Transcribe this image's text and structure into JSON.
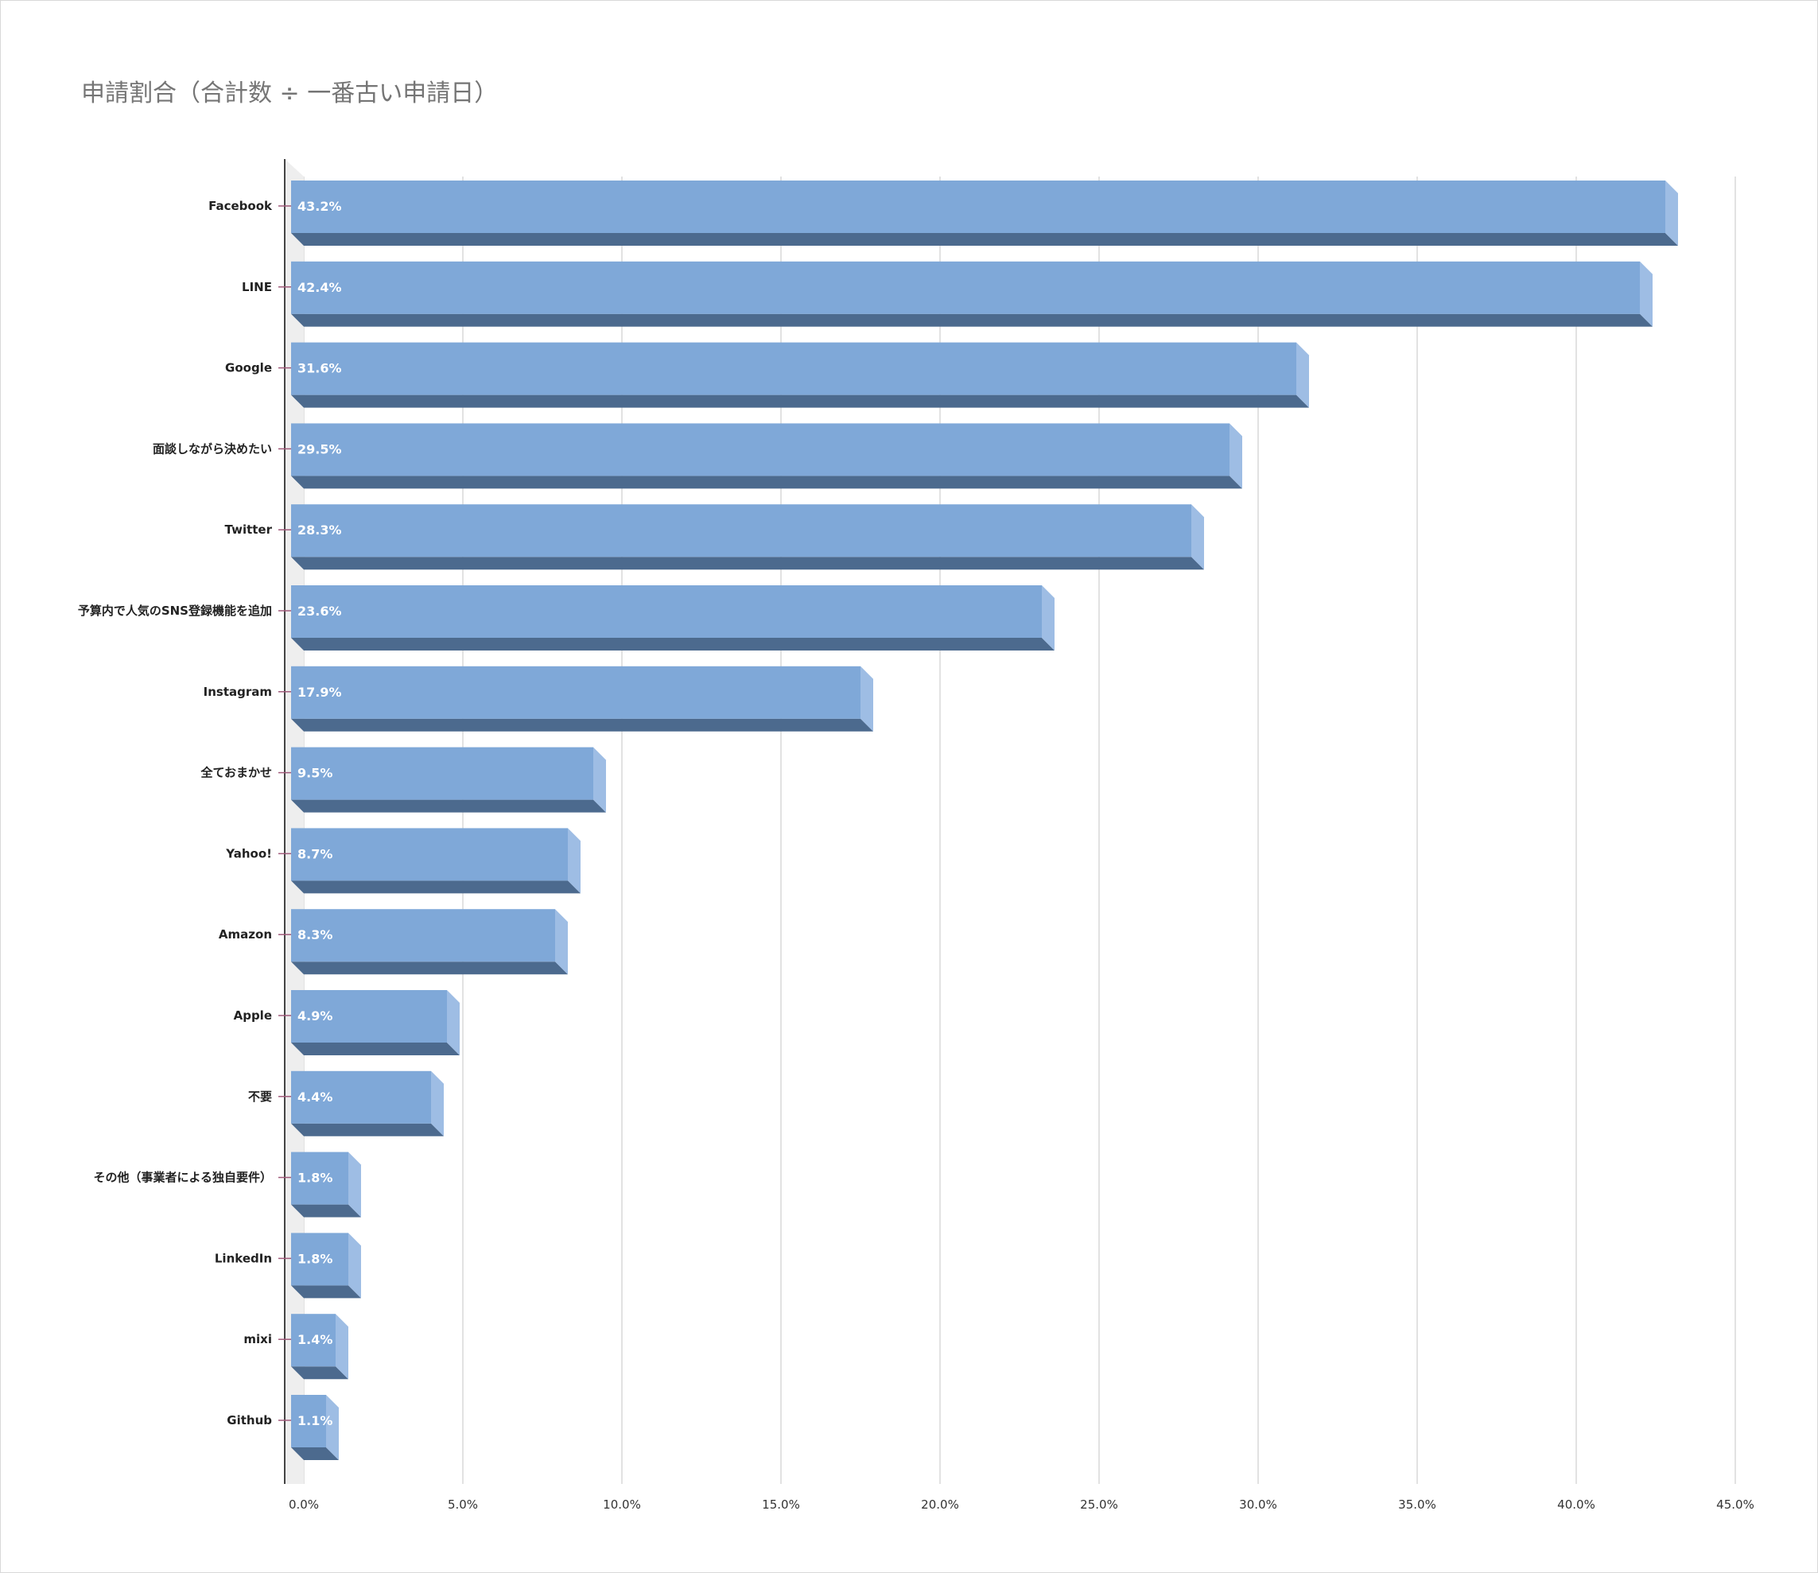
{
  "chart_data": {
    "type": "bar",
    "orientation": "horizontal",
    "title": "申請割合（合計数 ÷ 一番古い申請日）",
    "categories": [
      "Facebook",
      "LINE",
      "Google",
      "面談しながら決めたい",
      "Twitter",
      "予算内で人気のSNS登録機能を追加",
      "Instagram",
      "全ておまかせ",
      "Yahoo!",
      "Amazon",
      "Apple",
      "不要",
      "その他（事業者による独自要件）",
      "LinkedIn",
      "mixi",
      "Github"
    ],
    "values": [
      43.2,
      42.4,
      31.6,
      29.5,
      28.3,
      23.6,
      17.9,
      9.5,
      8.7,
      8.3,
      4.9,
      4.4,
      1.8,
      1.8,
      1.4,
      1.1
    ],
    "data_labels": [
      "43.2%",
      "42.4%",
      "31.6%",
      "29.5%",
      "28.3%",
      "23.6%",
      "17.9%",
      "9.5%",
      "8.7%",
      "8.3%",
      "4.9%",
      "4.4%",
      "1.8%",
      "1.8%",
      "1.4%",
      "1.1%"
    ],
    "x_ticks": [
      "0.0%",
      "5.0%",
      "10.0%",
      "15.0%",
      "20.0%",
      "25.0%",
      "30.0%",
      "35.0%",
      "40.0%",
      "45.0%"
    ],
    "xlim": [
      0,
      45
    ],
    "xlabel": "",
    "ylabel": "",
    "grid": true,
    "legend": "none",
    "style": "3d",
    "colors": {
      "bar_front": "#7fa8d8",
      "bar_side": "#9ebde4",
      "bar_bottom": "#4c6a8e",
      "grid": "#d9d9d9",
      "title": "#757575"
    }
  }
}
